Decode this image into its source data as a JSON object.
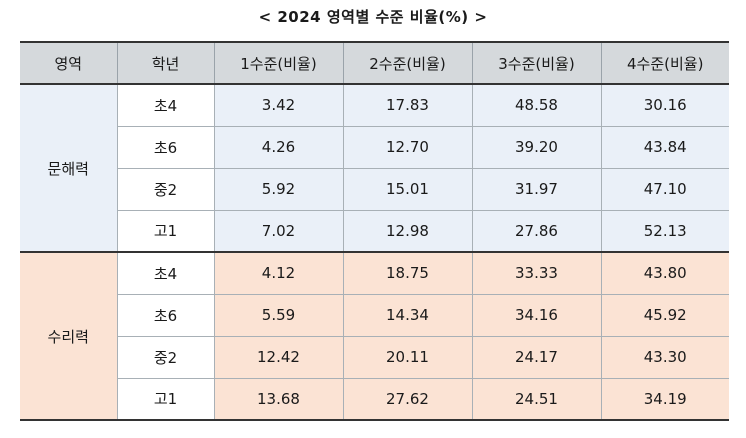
{
  "title": "< 2024 영역별 수준 비율(%) >",
  "table": {
    "headers": [
      "영역",
      "학년",
      "1수준(비율)",
      "2수준(비율)",
      "3수준(비율)",
      "4수준(비율)"
    ],
    "groups": [
      {
        "area": "문해력",
        "rows": [
          {
            "grade": "초4",
            "values": [
              "3.42",
              "17.83",
              "48.58",
              "30.16"
            ]
          },
          {
            "grade": "초6",
            "values": [
              "4.26",
              "12.70",
              "39.20",
              "43.84"
            ]
          },
          {
            "grade": "중2",
            "values": [
              "5.92",
              "15.01",
              "31.97",
              "47.10"
            ]
          },
          {
            "grade": "고1",
            "values": [
              "7.02",
              "12.98",
              "27.86",
              "52.13"
            ]
          }
        ]
      },
      {
        "area": "수리력",
        "rows": [
          {
            "grade": "초4",
            "values": [
              "4.12",
              "18.75",
              "33.33",
              "43.80"
            ]
          },
          {
            "grade": "초6",
            "values": [
              "5.59",
              "14.34",
              "34.16",
              "45.92"
            ]
          },
          {
            "grade": "중2",
            "values": [
              "12.42",
              "20.11",
              "24.17",
              "43.30"
            ]
          },
          {
            "grade": "고1",
            "values": [
              "13.68",
              "27.62",
              "24.51",
              "34.19"
            ]
          }
        ]
      }
    ]
  },
  "colors": {
    "header_bg": "#d5d9dc",
    "literacy_bg": "#eaf0f8",
    "numeracy_bg": "#fbe3d4"
  }
}
